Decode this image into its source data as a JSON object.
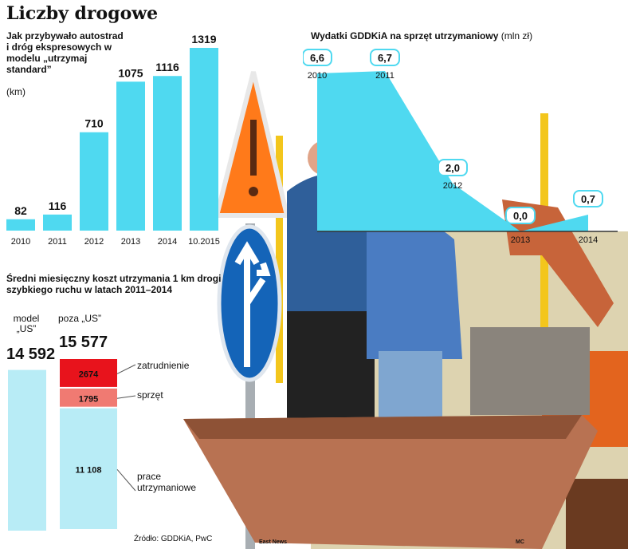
{
  "title": "Liczby drogowe",
  "chart_data": [
    {
      "type": "bar",
      "title": "Jak przybywało autostrad i dróg ekspresowych w modelu „utrzymaj standard”",
      "unit": "(km)",
      "categories": [
        "2010",
        "2011",
        "2012",
        "2013",
        "2014",
        "10.2015"
      ],
      "values": [
        82,
        116,
        710,
        1075,
        1116,
        1319
      ],
      "value_labels": [
        "82",
        "116",
        "710",
        "1075",
        "1116",
        "1319"
      ],
      "ylim": [
        0,
        1319
      ],
      "color": "#4fd9f0"
    },
    {
      "type": "area",
      "title": "Wydatki GDDKiA na sprzęt utrzymaniowy",
      "unit": "(mln zł)",
      "x": [
        "2010",
        "2011",
        "2012",
        "2013",
        "2014"
      ],
      "values": [
        6.6,
        6.7,
        2.0,
        0.0,
        0.7
      ],
      "value_labels": [
        "6,6",
        "6,7",
        "2,0",
        "0,0",
        "0,7"
      ],
      "ylim": [
        0,
        7
      ],
      "color": "#4fd9f0"
    },
    {
      "type": "bar",
      "title": "Średni miesięczny koszt utrzymania 1 km drogi szybkiego ruchu w latach 2011–2014",
      "columns": [
        {
          "label_line1": "model",
          "label_line2": "„US”",
          "total_label": "14 592",
          "total": 14592
        },
        {
          "label_line1": "poza „US”",
          "label_line2": "",
          "total_label": "15 577",
          "total": 15577
        }
      ],
      "segments": [
        {
          "name": "zatrudnienie",
          "value": 2674,
          "value_label": "2674",
          "color": "#e8131c"
        },
        {
          "name": "sprzęt",
          "value": 1795,
          "value_label": "1795",
          "color": "#f07a72"
        },
        {
          "name": "prace utrzymaniowe",
          "name_line1": "prace",
          "name_line2": "utrzymaniowe",
          "value": 11108,
          "value_label": "11 108",
          "color": "#b8ecf6"
        }
      ],
      "model_us_color": "#b8ecf6"
    }
  ],
  "source": "Źródło: GDDKiA, PwC",
  "photo_credit": "East News",
  "author": "MC"
}
